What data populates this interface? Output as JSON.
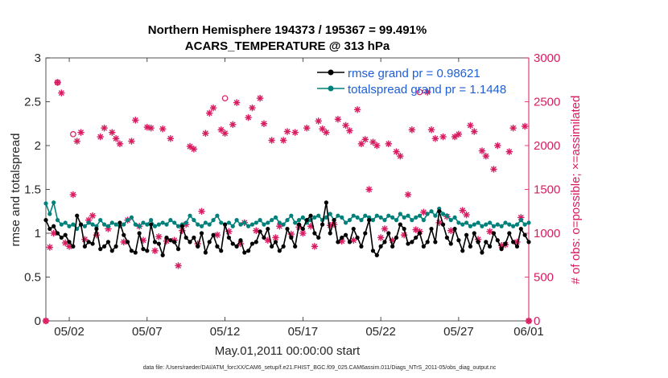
{
  "colors": {
    "rmse": "#000000",
    "spread": "#00807a",
    "obs": "#d81b60",
    "legend_text": "#1f5fd6",
    "axis": "#262626"
  },
  "chart_data": {
    "type": "line",
    "title_line1": "Northern Hemisphere 194373 / 195367 = 99.491%",
    "title_line2": "ACARS_TEMPERATURE @ 313 hPa",
    "xlabel": "May.01,2011 00:00:00 start",
    "ylabel_left": "rmse and totalspread",
    "ylabel_right": "# of obs: o=possible; ×=assimilated",
    "x_range": [
      0.5,
      31.5
    ],
    "x_ticks": [
      {
        "value": 2,
        "label": "05/02"
      },
      {
        "value": 7,
        "label": "05/07"
      },
      {
        "value": 12,
        "label": "05/12"
      },
      {
        "value": 17,
        "label": "05/17"
      },
      {
        "value": 22,
        "label": "05/22"
      },
      {
        "value": 27,
        "label": "05/27"
      },
      {
        "value": 31.5,
        "label": "06/01"
      }
    ],
    "y_left_range": [
      0,
      3
    ],
    "y_left_ticks": [
      0,
      0.5,
      1,
      1.5,
      2,
      2.5,
      3
    ],
    "y_right_range": [
      0,
      3000
    ],
    "y_right_ticks": [
      0,
      500,
      1000,
      1500,
      2000,
      2500,
      3000
    ],
    "footnote": "data file: /Users/raeder/DAI/ATM_forcXX/CAM6_setup/f.e21.FHIST_BGC.f09_025.CAM6assim.011/Diags_NTrS_2011-05/obs_diag_output.nc",
    "series": [
      {
        "name": "rmse",
        "legend": "rmse grand pr = 0.98621",
        "axis": "left",
        "x": [
          0.5,
          0.75,
          1.0,
          1.25,
          1.5,
          1.75,
          2.0,
          2.25,
          2.5,
          2.75,
          3.0,
          3.25,
          3.5,
          3.75,
          4.0,
          4.25,
          4.5,
          4.75,
          5.0,
          5.25,
          5.5,
          5.75,
          6.0,
          6.25,
          6.5,
          6.75,
          7.0,
          7.25,
          7.5,
          7.75,
          8.0,
          8.25,
          8.5,
          8.75,
          9.0,
          9.25,
          9.5,
          9.75,
          10.0,
          10.25,
          10.5,
          10.75,
          11.0,
          11.25,
          11.5,
          11.75,
          12.0,
          12.25,
          12.5,
          12.75,
          13.0,
          13.25,
          13.5,
          13.75,
          14.0,
          14.25,
          14.5,
          14.75,
          15.0,
          15.25,
          15.5,
          15.75,
          16.0,
          16.25,
          16.5,
          16.75,
          17.0,
          17.25,
          17.5,
          17.75,
          18.0,
          18.25,
          18.5,
          18.75,
          19.0,
          19.25,
          19.5,
          19.75,
          20.0,
          20.25,
          20.5,
          20.75,
          21.0,
          21.25,
          21.5,
          21.75,
          22.0,
          22.25,
          22.5,
          22.75,
          23.0,
          23.25,
          23.5,
          23.75,
          24.0,
          24.25,
          24.5,
          24.75,
          25.0,
          25.25,
          25.5,
          25.75,
          26.0,
          26.25,
          26.5,
          26.75,
          27.0,
          27.25,
          27.5,
          27.75,
          28.0,
          28.25,
          28.5,
          28.75,
          29.0,
          29.25,
          29.5,
          29.75,
          30.0,
          30.25,
          30.5,
          30.75,
          31.0,
          31.25,
          31.5
        ],
        "values": [
          1.15,
          1.05,
          1.08,
          1.0,
          0.95,
          0.98,
          0.9,
          0.85,
          1.2,
          1.1,
          0.85,
          0.9,
          0.88,
          1.05,
          0.82,
          0.85,
          0.9,
          0.8,
          0.85,
          1.12,
          0.98,
          0.9,
          0.8,
          0.78,
          1.0,
          0.82,
          0.8,
          1.1,
          0.9,
          0.88,
          0.75,
          0.95,
          0.92,
          0.9,
          0.82,
          1.08,
          0.95,
          0.9,
          0.95,
          0.85,
          1.0,
          0.78,
          0.9,
          0.98,
          0.85,
          0.8,
          1.1,
          0.95,
          0.88,
          0.85,
          0.92,
          0.78,
          0.8,
          0.88,
          0.9,
          1.02,
          0.95,
          1.05,
          0.85,
          0.9,
          0.8,
          0.85,
          1.05,
          0.95,
          0.85,
          1.1,
          1.05,
          1.15,
          1.2,
          1.0,
          0.95,
          1.1,
          1.35,
          1.0,
          1.15,
          0.9,
          0.95,
          0.98,
          0.9,
          1.05,
          0.95,
          0.85,
          1.0,
          1.15,
          0.8,
          0.75,
          0.85,
          0.9,
          1.0,
          0.85,
          0.95,
          1.1,
          1.05,
          0.88,
          0.9,
          0.95,
          1.0,
          0.85,
          0.9,
          1.05,
          0.9,
          1.25,
          1.1,
          0.95,
          0.88,
          1.05,
          0.92,
          0.8,
          0.98,
          0.85,
          1.0,
          0.9,
          0.78,
          0.9,
          0.85,
          1.0,
          0.92,
          0.82,
          0.88,
          1.0,
          0.9,
          0.85,
          1.05,
          0.98,
          0.9
        ]
      },
      {
        "name": "totalspread",
        "legend": "totalspread grand pr = 1.1448",
        "axis": "left",
        "x": [
          0.5,
          0.75,
          1.0,
          1.25,
          1.5,
          1.75,
          2.0,
          2.25,
          2.5,
          2.75,
          3.0,
          3.25,
          3.5,
          3.75,
          4.0,
          4.25,
          4.5,
          4.75,
          5.0,
          5.25,
          5.5,
          5.75,
          6.0,
          6.25,
          6.5,
          6.75,
          7.0,
          7.25,
          7.5,
          7.75,
          8.0,
          8.25,
          8.5,
          8.75,
          9.0,
          9.25,
          9.5,
          9.75,
          10.0,
          10.25,
          10.5,
          10.75,
          11.0,
          11.25,
          11.5,
          11.75,
          12.0,
          12.25,
          12.5,
          12.75,
          13.0,
          13.25,
          13.5,
          13.75,
          14.0,
          14.25,
          14.5,
          14.75,
          15.0,
          15.25,
          15.5,
          15.75,
          16.0,
          16.25,
          16.5,
          16.75,
          17.0,
          17.25,
          17.5,
          17.75,
          18.0,
          18.25,
          18.5,
          18.75,
          19.0,
          19.25,
          19.5,
          19.75,
          20.0,
          20.25,
          20.5,
          20.75,
          21.0,
          21.25,
          21.5,
          21.75,
          22.0,
          22.25,
          22.5,
          22.75,
          23.0,
          23.25,
          23.5,
          23.75,
          24.0,
          24.25,
          24.5,
          24.75,
          25.0,
          25.25,
          25.5,
          25.75,
          26.0,
          26.25,
          26.5,
          26.75,
          27.0,
          27.25,
          27.5,
          27.75,
          28.0,
          28.25,
          28.5,
          28.75,
          29.0,
          29.25,
          29.5,
          29.75,
          30.0,
          30.25,
          30.5,
          30.75,
          31.0,
          31.25,
          31.5
        ],
        "values": [
          1.34,
          1.22,
          1.35,
          1.15,
          1.1,
          1.12,
          1.08,
          1.1,
          1.05,
          1.1,
          1.08,
          1.12,
          1.1,
          1.08,
          1.15,
          1.1,
          1.08,
          1.12,
          1.1,
          1.08,
          1.1,
          1.15,
          1.18,
          1.1,
          1.08,
          1.12,
          1.1,
          1.15,
          1.08,
          1.1,
          1.12,
          1.1,
          1.15,
          1.12,
          1.08,
          1.1,
          1.12,
          1.2,
          1.15,
          1.1,
          1.08,
          1.12,
          1.1,
          1.15,
          1.2,
          1.12,
          1.1,
          1.12,
          1.08,
          1.15,
          1.1,
          1.12,
          1.08,
          1.1,
          1.12,
          1.15,
          1.1,
          1.12,
          1.15,
          1.18,
          1.12,
          1.1,
          1.15,
          1.2,
          1.12,
          1.15,
          1.18,
          1.12,
          1.15,
          1.18,
          1.2,
          1.15,
          1.18,
          1.22,
          1.15,
          1.2,
          1.18,
          1.12,
          1.15,
          1.2,
          1.18,
          1.15,
          1.2,
          1.18,
          1.15,
          1.2,
          1.18,
          1.15,
          1.2,
          1.18,
          1.15,
          1.22,
          1.18,
          1.2,
          1.15,
          1.18,
          1.2,
          1.15,
          1.22,
          1.25,
          1.2,
          1.28,
          1.22,
          1.2,
          1.15,
          1.18,
          1.12,
          1.1,
          1.12,
          1.08,
          1.1,
          1.12,
          1.08,
          1.1,
          1.12,
          1.08,
          1.1,
          1.08,
          1.12,
          1.1,
          1.08,
          1.1,
          1.15,
          1.1,
          1.12
        ]
      },
      {
        "name": "obs_assimilated",
        "axis": "right",
        "marker": "asterisk",
        "x": [
          0.5,
          0.75,
          1.0,
          1.25,
          1.5,
          1.75,
          2.0,
          2.25,
          2.5,
          2.75,
          3.0,
          3.25,
          3.5,
          3.75,
          4.0,
          4.25,
          4.5,
          4.75,
          5.0,
          5.25,
          5.5,
          5.75,
          6.0,
          6.25,
          6.5,
          6.75,
          7.0,
          7.25,
          7.5,
          7.75,
          8.0,
          8.25,
          8.5,
          8.75,
          9.0,
          9.25,
          9.5,
          9.75,
          10.0,
          10.25,
          10.5,
          10.75,
          11.0,
          11.25,
          11.5,
          11.75,
          12.0,
          12.25,
          12.5,
          12.75,
          13.0,
          13.25,
          13.5,
          13.75,
          14.0,
          14.25,
          14.5,
          14.75,
          15.0,
          15.25,
          15.5,
          15.75,
          16.0,
          16.25,
          16.5,
          16.75,
          17.0,
          17.25,
          17.5,
          17.75,
          18.0,
          18.25,
          18.5,
          18.75,
          19.0,
          19.25,
          19.5,
          19.75,
          20.0,
          20.25,
          20.5,
          20.75,
          21.0,
          21.25,
          21.5,
          21.75,
          22.0,
          22.25,
          22.5,
          22.75,
          23.0,
          23.25,
          23.5,
          23.75,
          24.0,
          24.25,
          24.5,
          24.75,
          25.0,
          25.25,
          25.5,
          25.75,
          26.0,
          26.25,
          26.5,
          26.75,
          27.0,
          27.25,
          27.5,
          27.75,
          28.0,
          28.25,
          28.5,
          28.75,
          29.0,
          29.25,
          29.5,
          29.75,
          30.0,
          30.25,
          30.5,
          30.75,
          31.0,
          31.25,
          31.5
        ],
        "values": [
          0,
          840,
          1000,
          2720,
          2600,
          890,
          850,
          1440,
          2050,
          2150,
          930,
          1150,
          1200,
          980,
          2100,
          2200,
          1050,
          2150,
          2080,
          2020,
          900,
          1150,
          2050,
          2290,
          1080,
          920,
          2210,
          2200,
          800,
          960,
          2190,
          910,
          2080,
          920,
          630,
          1030,
          1100,
          1990,
          1960,
          880,
          1250,
          2140,
          2370,
          2430,
          980,
          2180,
          2140,
          1020,
          2240,
          2490,
          880,
          1120,
          2320,
          2430,
          1030,
          2540,
          2250,
          920,
          2060,
          950,
          1080,
          2060,
          2160,
          990,
          2150,
          1070,
          1000,
          2200,
          1080,
          850,
          2280,
          2190,
          2150,
          1090,
          1100,
          2300,
          910,
          2230,
          2170,
          920,
          2410,
          2020,
          2070,
          1500,
          2040,
          2000,
          950,
          1050,
          2020,
          920,
          1930,
          1880,
          980,
          1440,
          2180,
          1040,
          1020,
          1240,
          2610,
          2180,
          2080,
          1120,
          2100,
          1190,
          1030,
          2100,
          2130,
          1260,
          1210,
          2230,
          2160,
          930,
          1940,
          1880,
          1020,
          1730,
          2000,
          860,
          870,
          1930,
          2200,
          900,
          1180,
          2220,
          0
        ]
      },
      {
        "name": "obs_possible",
        "axis": "right",
        "marker": "circle",
        "x": [
          0.5,
          1.25,
          2.25,
          12.0,
          24.5,
          31.5
        ],
        "values": [
          0,
          2720,
          2130,
          2540,
          2610,
          0
        ]
      }
    ]
  }
}
